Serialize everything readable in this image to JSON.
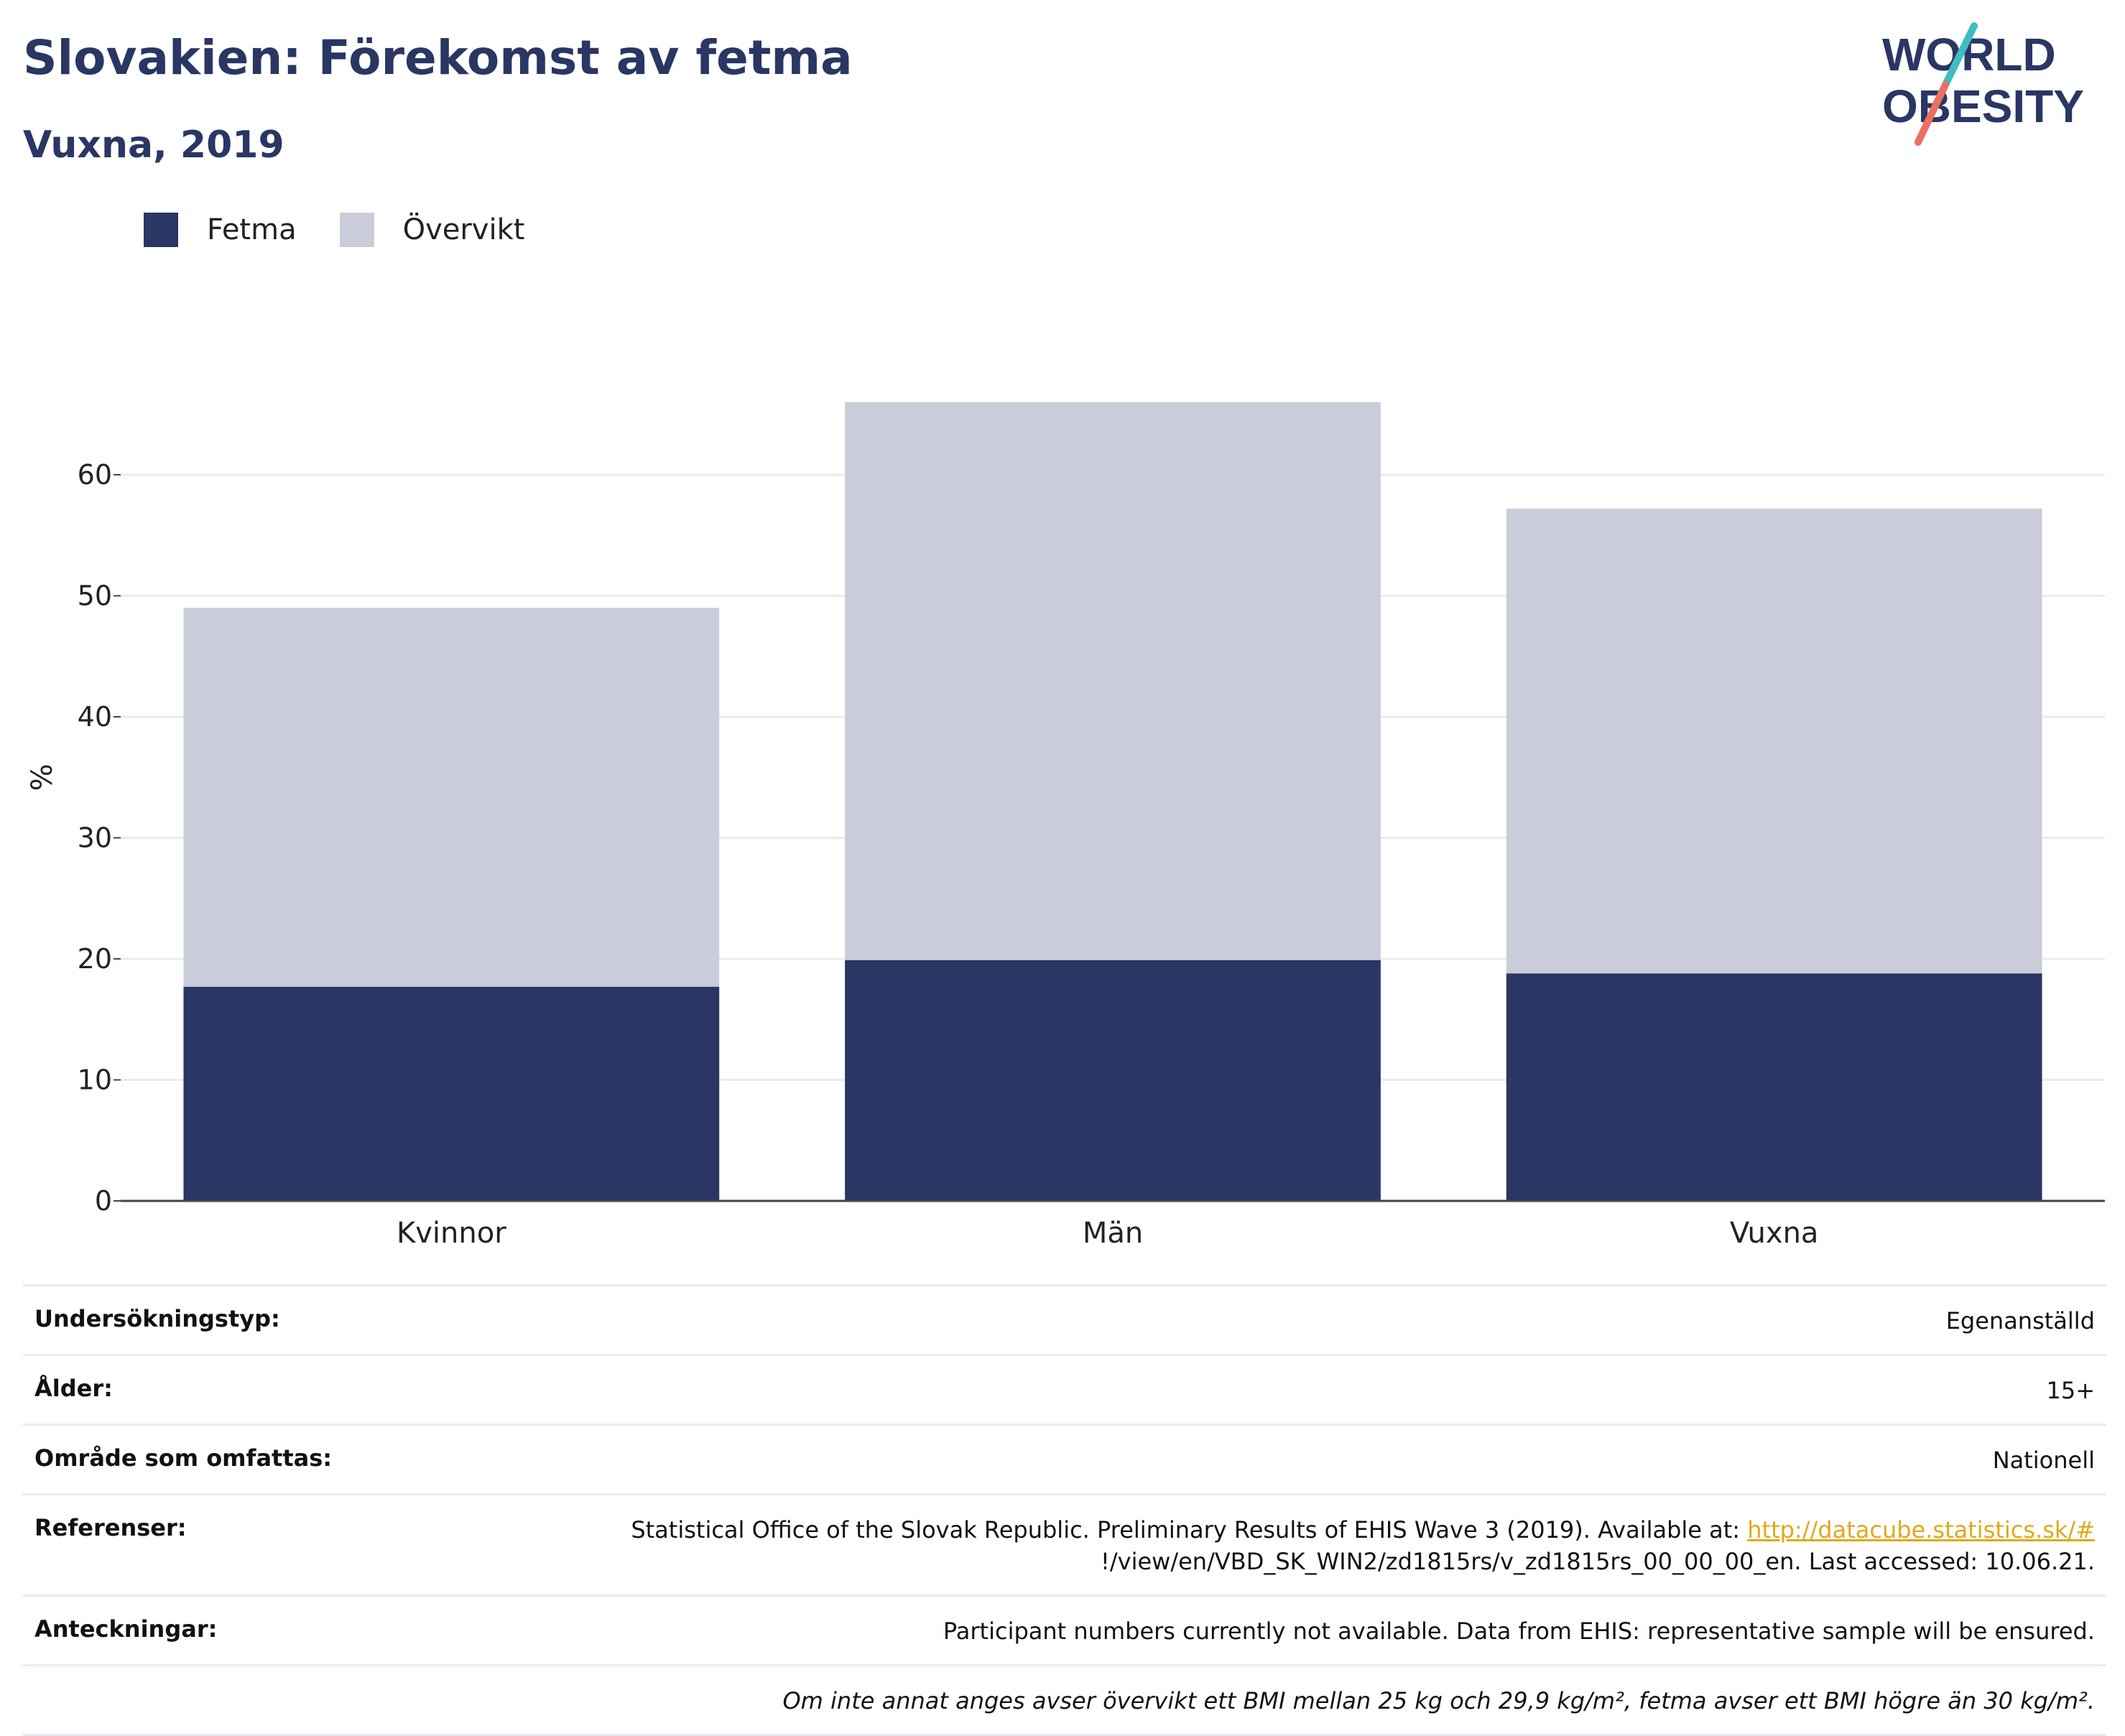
{
  "header": {
    "title": "Slovakien: Förekomst av fetma",
    "subtitle": "Vuxna, 2019",
    "logo_line1": "WORLD",
    "logo_line2": "OBESITY"
  },
  "colors": {
    "obesity": "#2a3663",
    "overweight": "#cacdd9",
    "title": "#2a3663",
    "link": "#e0a91c",
    "logo_teal": "#3ebdc0",
    "logo_coral": "#e8715f"
  },
  "legend": [
    {
      "label": "Fetma",
      "color": "#2a3663"
    },
    {
      "label": "Övervikt",
      "color": "#cacdd9"
    }
  ],
  "chart_data": {
    "type": "bar",
    "stacked": true,
    "categories": [
      "Kvinnor",
      "Män",
      "Vuxna"
    ],
    "series": [
      {
        "name": "Fetma",
        "values": [
          17.7,
          19.9,
          18.8
        ]
      },
      {
        "name": "Övervikt",
        "values": [
          31.3,
          46.1,
          38.4
        ]
      }
    ],
    "ylabel": "%",
    "ylim": [
      0,
      70
    ],
    "yticks": [
      0,
      10,
      20,
      30,
      40,
      50,
      60
    ],
    "grid": true,
    "legend_position": "top-left"
  },
  "info": {
    "survey_type": {
      "label": "Undersökningstyp:",
      "value": "Egenanställd"
    },
    "age": {
      "label": "Ålder:",
      "value": "15+"
    },
    "area": {
      "label": "Område som omfattas:",
      "value": "Nationell"
    },
    "references": {
      "label": "Referenser:",
      "text_before": "Statistical Office of the Slovak Republic. Preliminary Results of EHIS Wave 3 (2019). Available at: ",
      "link": "http://datacube.statistics.sk/#",
      "text_after": "!/view/en/VBD_SK_WIN2/zd1815rs/v_zd1815rs_00_00_00_en. Last accessed: 10.06.21."
    },
    "notes": {
      "label": "Anteckningar:",
      "value": "Participant numbers currently not available. Data from EHIS: representative sample will be ensured."
    },
    "footnote": "Om inte annat anges avser övervikt ett BMI mellan 25 kg och 29,9 kg/m², fetma avser ett BMI högre än 30 kg/m²."
  }
}
